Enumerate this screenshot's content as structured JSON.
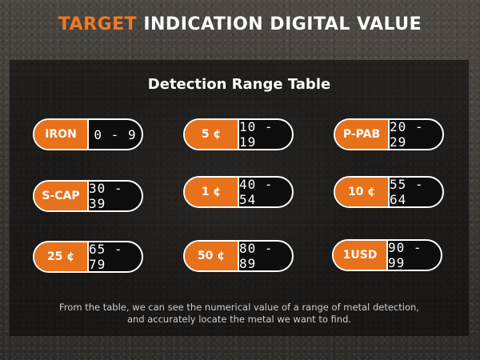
{
  "header": {
    "accent": "TARGET",
    "rest": " INDICATION DIGITAL VALUE"
  },
  "table": {
    "title": "Detection Range Table",
    "rows": [
      {
        "label": "IRON",
        "range": "0 - 9"
      },
      {
        "label": "5 ¢",
        "range": "10 - 19"
      },
      {
        "label": "P-PAB",
        "range": "20 - 29"
      },
      {
        "label": "S-CAP",
        "range": "30 - 39"
      },
      {
        "label": "1 ¢",
        "range": "40 - 54"
      },
      {
        "label": "10 ¢",
        "range": "55 - 64"
      },
      {
        "label": "25 ¢",
        "range": "65 - 79"
      },
      {
        "label": "50 ¢",
        "range": "80 - 89"
      },
      {
        "label": "1USD",
        "range": "90 - 99"
      }
    ]
  },
  "caption": {
    "line1": "From the table, we can see the numerical value of a range of metal detection,",
    "line2": "and accurately locate the metal we want to find."
  },
  "colors": {
    "accent": "#f07a22",
    "label_fill": "#e8721c",
    "value_fill": "#0d0d0d",
    "border": "#ffffff"
  }
}
